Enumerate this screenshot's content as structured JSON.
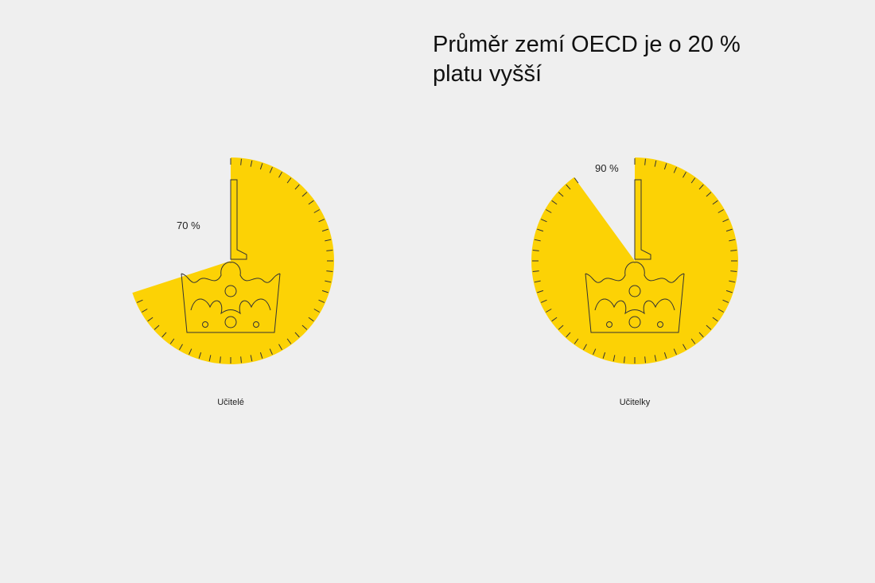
{
  "headline": {
    "line1": "Průměr zemí OECD je o 20 %",
    "line2": "platu vyšší"
  },
  "colors": {
    "background": "#efefef",
    "coin_fill": "#fcd205",
    "outline": "#333333"
  },
  "chart_data": [
    {
      "type": "pie",
      "categories": [
        "Učitelé"
      ],
      "values": [
        70
      ],
      "data_labels": [
        "70 %"
      ],
      "total": 100,
      "start": "top, clockwise",
      "group_label": "Učitelé"
    },
    {
      "type": "pie",
      "categories": [
        "Učitelky"
      ],
      "values": [
        90
      ],
      "data_labels": [
        "90 %"
      ],
      "total": 100,
      "start": "top, clockwise",
      "group_label": "Učitelky"
    }
  ]
}
